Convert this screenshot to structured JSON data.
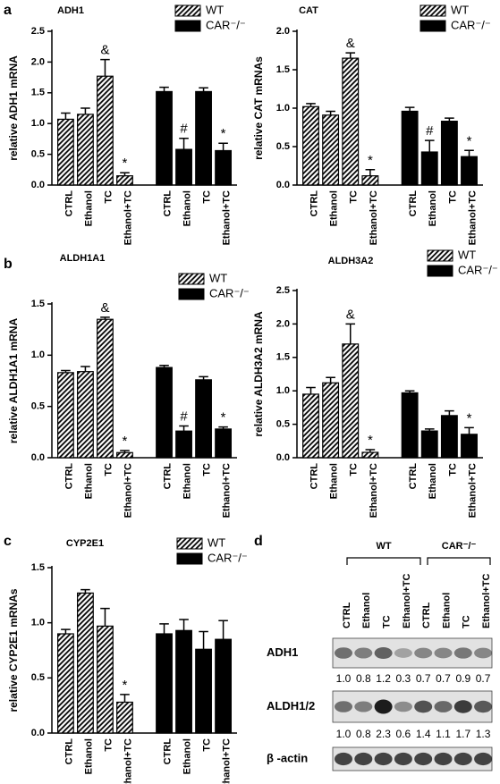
{
  "panel_labels": [
    "a",
    "b",
    "c",
    "d"
  ],
  "chart_data": [
    {
      "type": "bar",
      "title": "ADH1",
      "ylabel": "relative ADH1 mRNA",
      "legend": "top right",
      "categories": [
        "CTRL",
        "Ethanol",
        "TC",
        "Ethanol+TC"
      ],
      "ylim": [
        0,
        2.5
      ],
      "yticks": [
        {
          "value": 0,
          "label": "0.0"
        },
        0.5,
        {
          "value": 1,
          "label": "1.0"
        },
        1.5,
        {
          "value": 2,
          "label": "2.0"
        },
        2.5
      ],
      "series": [
        {
          "name": "WT",
          "color": "#000000",
          "pattern": "hatch",
          "values": [
            1.07,
            1.15,
            1.77,
            0.15
          ],
          "errors": [
            0.1,
            0.1,
            0.27,
            0.05
          ],
          "annotations": [
            null,
            null,
            "&",
            "*"
          ]
        },
        {
          "name": "CAR⁻/⁻",
          "color": "#000000",
          "pattern": "solid",
          "values": [
            1.52,
            0.58,
            1.52,
            0.56
          ],
          "errors": [
            0.07,
            0.18,
            0.06,
            0.12
          ],
          "annotations": [
            null,
            "#",
            null,
            "*"
          ]
        }
      ]
    },
    {
      "type": "bar",
      "title": "CAT",
      "ylabel": "relative CAT mRNAs",
      "legend": "top right",
      "categories": [
        "CTRL",
        "Ethanol",
        "TC",
        "Ethanol+TC"
      ],
      "ylim": [
        0,
        2
      ],
      "yticks": [
        {
          "value": 0,
          "label": "0.0"
        },
        0.5,
        {
          "value": 1,
          "label": "1.0"
        },
        1.5,
        {
          "value": 2,
          "label": "2.0"
        }
      ],
      "series": [
        {
          "name": "WT",
          "color": "#000000",
          "pattern": "hatch",
          "values": [
            1.02,
            0.91,
            1.65,
            0.12
          ],
          "errors": [
            0.04,
            0.05,
            0.07,
            0.08
          ],
          "annotations": [
            null,
            null,
            "&",
            "*"
          ]
        },
        {
          "name": "CAR⁻/⁻",
          "color": "#000000",
          "pattern": "solid",
          "values": [
            0.96,
            0.43,
            0.83,
            0.37
          ],
          "errors": [
            0.05,
            0.15,
            0.04,
            0.08
          ],
          "annotations": [
            null,
            "#",
            null,
            "*"
          ]
        }
      ]
    },
    {
      "type": "bar",
      "title": "ALDH1A1",
      "ylabel": "relative ALDH1A1 mRNA",
      "legend": "top right",
      "categories": [
        "CTRL",
        "Ethanol",
        "TC",
        "Ethanol+TC"
      ],
      "ylim": [
        0,
        1.5
      ],
      "yticks": [
        {
          "value": 0,
          "label": "0.0"
        },
        0.5,
        {
          "value": 1,
          "label": "1.0"
        },
        1.5
      ],
      "series": [
        {
          "name": "WT",
          "color": "#000000",
          "pattern": "hatch",
          "values": [
            0.83,
            0.84,
            1.35,
            0.05
          ],
          "errors": [
            0.02,
            0.05,
            0.02,
            0.02
          ],
          "annotations": [
            null,
            null,
            "&",
            "*"
          ]
        },
        {
          "name": "CAR⁻/⁻",
          "color": "#000000",
          "pattern": "solid",
          "values": [
            0.88,
            0.26,
            0.76,
            0.28
          ],
          "errors": [
            0.02,
            0.05,
            0.03,
            0.02
          ],
          "annotations": [
            null,
            "#",
            null,
            "*"
          ]
        }
      ]
    },
    {
      "type": "bar",
      "title": "ALDH3A2",
      "ylabel": "relative ALDH3A2 mRNA",
      "legend": "top right",
      "categories": [
        "CTRL",
        "Ethanol",
        "TC",
        "Ethanol+TC"
      ],
      "ylim": [
        0,
        2.5
      ],
      "yticks": [
        {
          "value": 0,
          "label": "0.0"
        },
        0.5,
        {
          "value": 1,
          "label": "1.0"
        },
        1.5,
        {
          "value": 2,
          "label": "2.0"
        },
        2.5
      ],
      "series": [
        {
          "name": "WT",
          "color": "#000000",
          "pattern": "hatch",
          "values": [
            0.95,
            1.12,
            1.7,
            0.08
          ],
          "errors": [
            0.1,
            0.08,
            0.3,
            0.04
          ],
          "annotations": [
            null,
            null,
            "&",
            "*"
          ]
        },
        {
          "name": "CAR⁻/⁻",
          "color": "#000000",
          "pattern": "solid",
          "values": [
            0.97,
            0.4,
            0.63,
            0.35
          ],
          "errors": [
            0.03,
            0.03,
            0.07,
            0.1
          ],
          "annotations": [
            null,
            null,
            null,
            "*"
          ]
        }
      ]
    },
    {
      "type": "bar",
      "title": "CYP2E1",
      "ylabel": "relative CYP2E1 mRNAs",
      "legend": "top right",
      "categories": [
        "CTRL",
        "Ethanol",
        "TC",
        "Ethanol+TC"
      ],
      "ylim": [
        0,
        1.5
      ],
      "yticks": [
        {
          "value": 0,
          "label": "0.0"
        },
        0.5,
        {
          "value": 1,
          "label": "1.0"
        },
        1.5
      ],
      "series": [
        {
          "name": "WT",
          "color": "#000000",
          "pattern": "hatch",
          "values": [
            0.9,
            1.27,
            0.97,
            0.28
          ],
          "errors": [
            0.04,
            0.03,
            0.16,
            0.07
          ],
          "annotations": [
            null,
            null,
            null,
            "*"
          ]
        },
        {
          "name": "CAR⁻/⁻",
          "color": "#000000",
          "pattern": "solid",
          "values": [
            0.9,
            0.93,
            0.76,
            0.85
          ],
          "errors": [
            0.09,
            0.1,
            0.16,
            0.17
          ],
          "annotations": [
            null,
            null,
            null,
            null
          ]
        }
      ]
    }
  ],
  "blot": {
    "groups": [
      "WT",
      "CAR⁻/⁻"
    ],
    "lanes": [
      "CTRL",
      "Ethanol",
      "TC",
      "Ethanol+TC",
      "CTRL",
      "Ethanol",
      "TC",
      "Ethanol+TC"
    ],
    "rows": [
      {
        "label": "ADH1",
        "quant": [
          "1.0",
          "0.8",
          "1.2",
          "0.3",
          "0.7",
          "0.7",
          "0.9",
          "0.7"
        ]
      },
      {
        "label": "ALDH1/2",
        "quant": [
          "1.0",
          "0.8",
          "2.3",
          "0.6",
          "1.4",
          "1.1",
          "1.7",
          "1.3"
        ]
      },
      {
        "label": "β -actin"
      }
    ]
  }
}
